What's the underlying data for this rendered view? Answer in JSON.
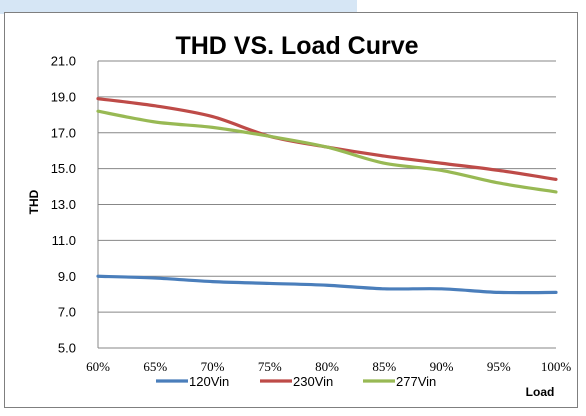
{
  "chart_data": {
    "type": "line",
    "title": "THD VS. Load Curve",
    "ylabel": "THD",
    "xlabel": "Load",
    "categories": [
      "60%",
      "65%",
      "70%",
      "75%",
      "80%",
      "85%",
      "90%",
      "95%",
      "100%"
    ],
    "y_ticks": [
      "5.0",
      "7.0",
      "9.0",
      "11.0",
      "13.0",
      "15.0",
      "17.0",
      "19.0",
      "21.0"
    ],
    "ylim": [
      5,
      21
    ],
    "grid": true,
    "legend_position": "bottom",
    "series": [
      {
        "name": "120Vin",
        "color": "#4a7ebb",
        "values": [
          9.0,
          8.9,
          8.7,
          8.6,
          8.5,
          8.3,
          8.3,
          8.1,
          8.1
        ]
      },
      {
        "name": "230Vin",
        "color": "#be4b48",
        "values": [
          18.9,
          18.5,
          17.9,
          16.8,
          16.2,
          15.7,
          15.3,
          14.9,
          14.4
        ]
      },
      {
        "name": "277Vin",
        "color": "#98b954",
        "values": [
          18.2,
          17.6,
          17.3,
          16.8,
          16.2,
          15.3,
          14.9,
          14.2,
          13.7
        ]
      }
    ]
  }
}
